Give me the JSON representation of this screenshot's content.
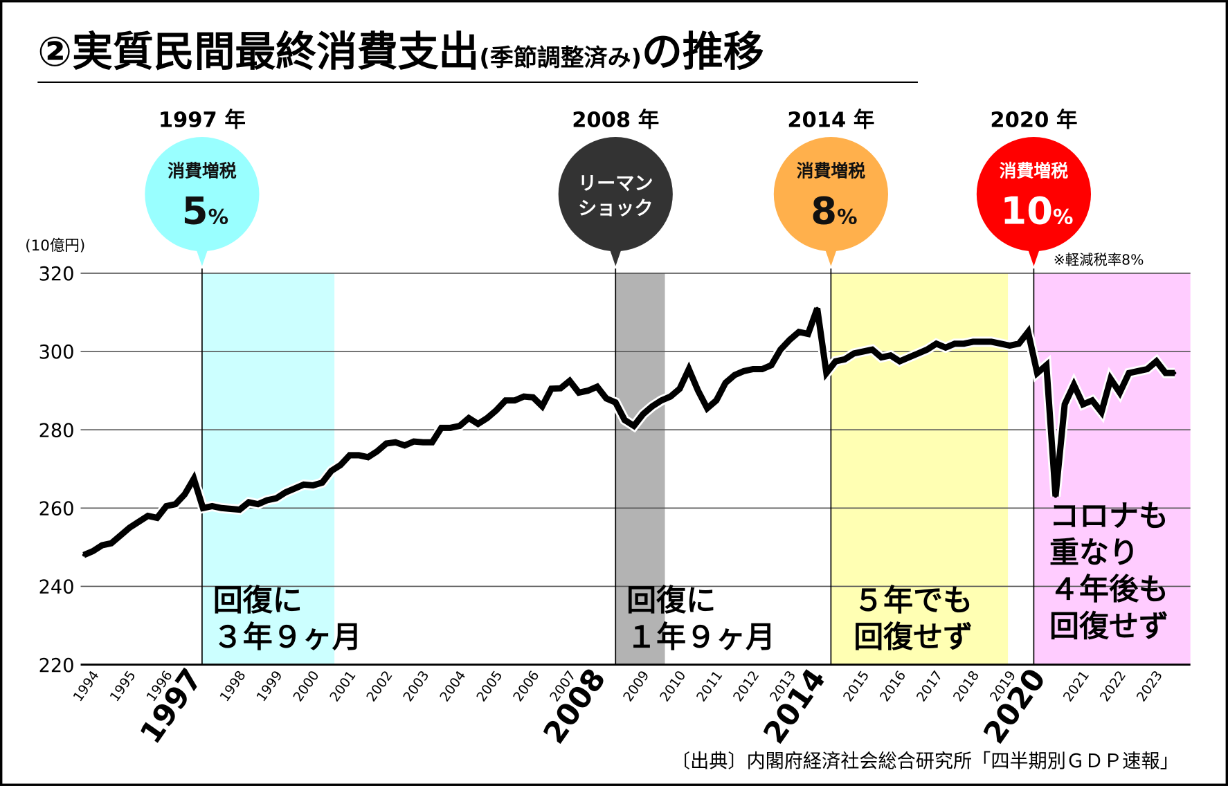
{
  "title": {
    "number": "②",
    "main": "実質民間最終消費支出",
    "paren": "(季節調整済み)",
    "tail": "の推移"
  },
  "unit_label": "(10億円)",
  "note": "※軽減税率8%",
  "source": "〔出典〕内閣府経済社会総合研究所「四半期別ＧＤＰ速報」",
  "events": [
    {
      "year_label": "1997 年",
      "line1": "消費増税",
      "line2": "5",
      "suffix": "%",
      "color": "#99ffff",
      "text_color": "#111111"
    },
    {
      "year_label": "2008 年",
      "line1": "リーマン",
      "line2": "ショック",
      "suffix": "",
      "color": "#333333",
      "text_color": "#ffffff"
    },
    {
      "year_label": "2014 年",
      "line1": "消費増税",
      "line2": "8",
      "suffix": "%",
      "color": "#ffb04c",
      "text_color": "#111111"
    },
    {
      "year_label": "2020 年",
      "line1": "消費増税",
      "line2": "10",
      "suffix": "%",
      "color": "#ff0000",
      "text_color": "#ffffff"
    }
  ],
  "bands": [
    {
      "color": "#ccffff",
      "lines": [
        "回復に",
        "３年９ヶ月"
      ]
    },
    {
      "color": "#b3b3b3",
      "lines": [
        "回復に",
        "１年９ヶ月"
      ]
    },
    {
      "color": "#ffffb3",
      "lines": [
        "５年でも",
        "回復せず"
      ]
    },
    {
      "color": "#ffccff",
      "lines": [
        "コロナも",
        "重なり",
        "４年後も",
        "回復せず"
      ]
    }
  ],
  "chart_data": {
    "type": "line",
    "title": "実質民間最終消費支出(季節調整済み)の推移",
    "ylabel": "(10億円)",
    "xlabel": "",
    "ylim": [
      220,
      320
    ],
    "yticks": [
      220,
      240,
      260,
      280,
      300,
      320
    ],
    "grid": true,
    "frequency": "quarterly",
    "start": "1994Q1",
    "xtick_labels": [
      "1994",
      "1995",
      "1996",
      "1997",
      "1998",
      "1999",
      "2000",
      "2001",
      "2002",
      "2003",
      "2004",
      "2005",
      "2006",
      "2007",
      "2008",
      "2009",
      "2010",
      "2011",
      "2012",
      "2013",
      "2014",
      "2015",
      "2016",
      "2017",
      "2018",
      "2019",
      "2020",
      "2021",
      "2022",
      "2023"
    ],
    "highlight_years": [
      "1997",
      "2008",
      "2014",
      "2020"
    ],
    "series": [
      {
        "name": "実質民間最終消費支出",
        "values": [
          248,
          249,
          250.5,
          251,
          253,
          255,
          256.5,
          258,
          257.5,
          260.5,
          261,
          263.5,
          267.5,
          260,
          260.5,
          260,
          259.8,
          259.6,
          261.5,
          261,
          262,
          262.5,
          264,
          265,
          266,
          265.8,
          266.5,
          269.5,
          271,
          273.5,
          273.5,
          273,
          274.5,
          276.5,
          276.8,
          276,
          277,
          276.8,
          276.8,
          280.5,
          280.5,
          281,
          283,
          281.5,
          283,
          285,
          287.5,
          287.5,
          288.5,
          288.3,
          286,
          290.5,
          290.6,
          292.5,
          289.5,
          290,
          291,
          288,
          287,
          282.5,
          281,
          284,
          286,
          287.5,
          288.5,
          290.5,
          295.5,
          290,
          285.5,
          287.5,
          292,
          294,
          295,
          295.5,
          295.5,
          296.5,
          300.5,
          303,
          305,
          304.5,
          311,
          294.5,
          297.5,
          298,
          299.5,
          300,
          300.5,
          298.5,
          299,
          297.5,
          298.5,
          299.5,
          300.5,
          302,
          301,
          302,
          302,
          302.5,
          302.5,
          302.5,
          302,
          301.5,
          302,
          305,
          294.5,
          296.5,
          263,
          286.5,
          291.5,
          286.5,
          287.5,
          284.5,
          293,
          289.5,
          294.5,
          295,
          295.5,
          297.5,
          294.5,
          294.5
        ]
      }
    ]
  }
}
